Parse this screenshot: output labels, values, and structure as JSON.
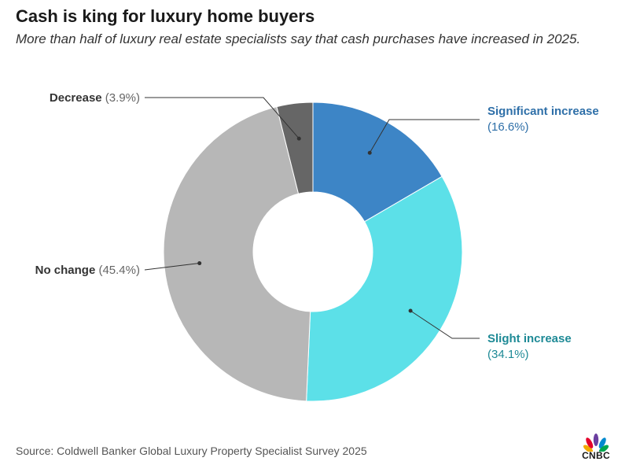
{
  "header": {
    "title": "Cash is king for luxury home buyers",
    "subtitle": "More than half of luxury real estate specialists say that cash purchases have increased in 2025."
  },
  "footer": {
    "source": "Source: Coldwell Banker Global Luxury Property Specialist Survey 2025",
    "logo_text": "CNBC"
  },
  "chart_data": {
    "type": "pie",
    "donut": true,
    "slices": [
      {
        "label": "Significant increase",
        "value": 16.6,
        "value_label": "(16.6%)",
        "color": "#3d85c6",
        "label_color": "#2e6fa8"
      },
      {
        "label": "Slight increase",
        "value": 34.1,
        "value_label": "(34.1%)",
        "color": "#5ce0e8",
        "label_color": "#1e8a96"
      },
      {
        "label": "No change",
        "value": 45.4,
        "value_label": "(45.4%)",
        "color": "#b7b7b7",
        "label_color": "#333333"
      },
      {
        "label": "Decrease",
        "value": 3.9,
        "value_label": "(3.9%)",
        "color": "#666666",
        "label_color": "#333333"
      }
    ],
    "label_value_color": "#666666"
  }
}
